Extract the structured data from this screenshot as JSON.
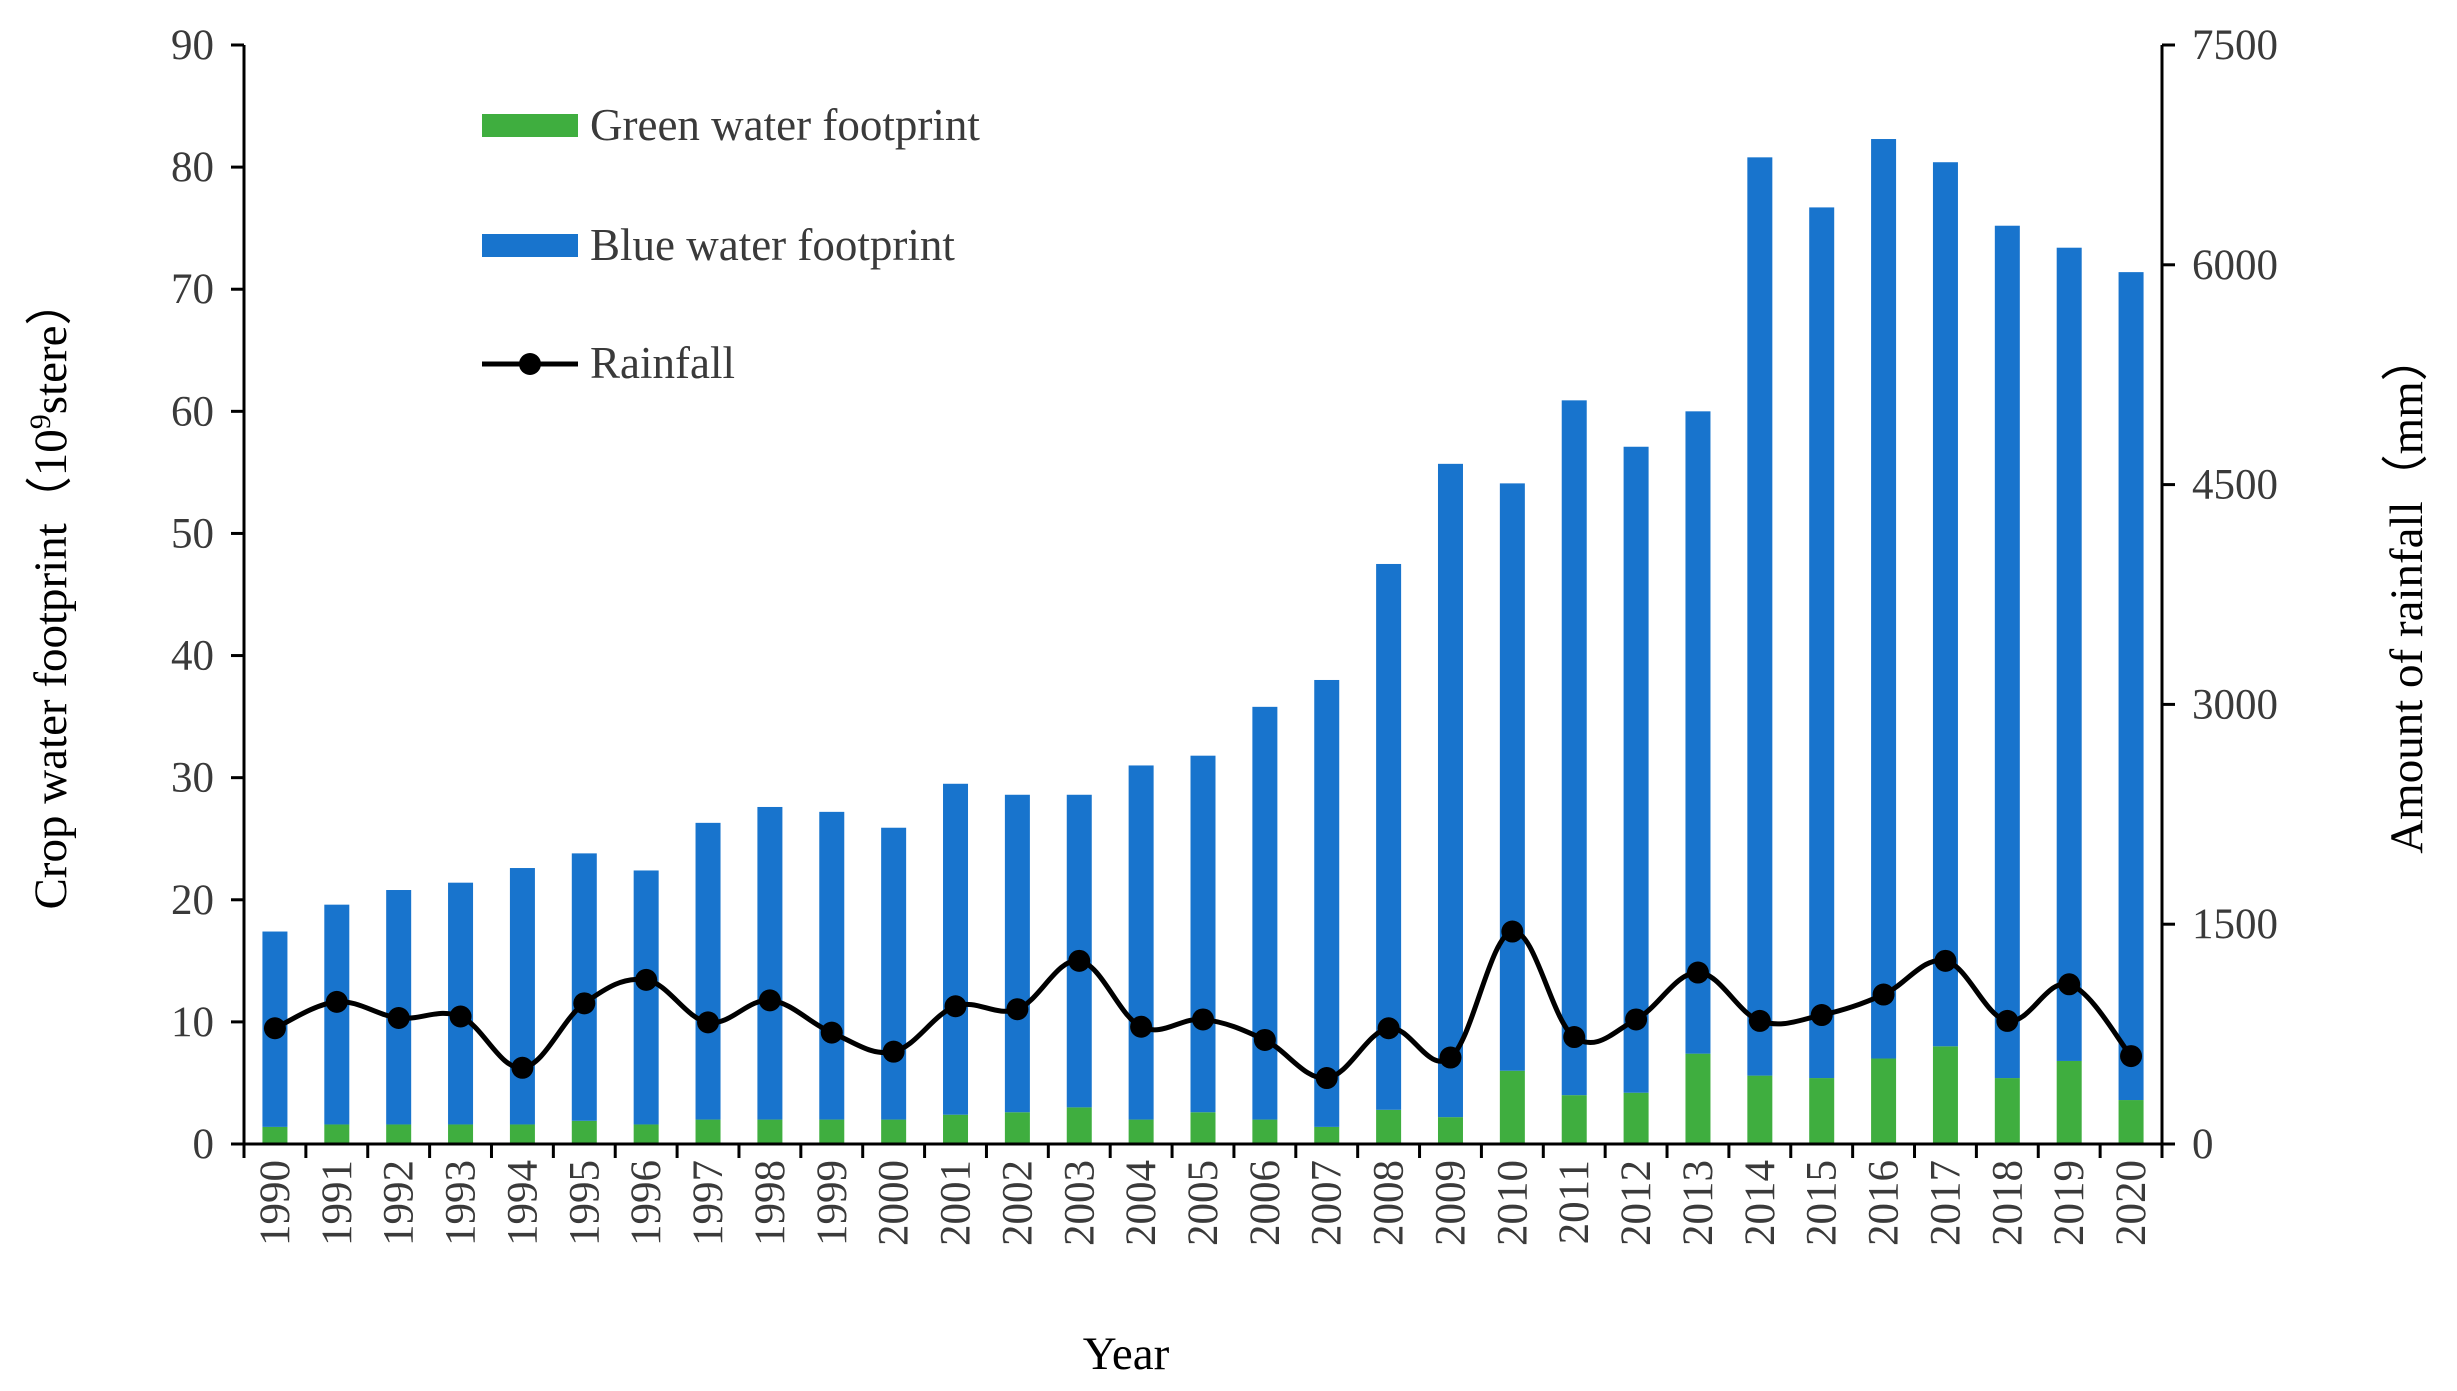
{
  "chart_data": {
    "type": "bar",
    "stacked": true,
    "categories": [
      "1990",
      "1991",
      "1992",
      "1993",
      "1994",
      "1995",
      "1996",
      "1997",
      "1998",
      "1999",
      "2000",
      "2001",
      "2002",
      "2003",
      "2004",
      "2005",
      "2006",
      "2007",
      "2008",
      "2009",
      "2010",
      "2011",
      "2012",
      "2013",
      "2014",
      "2015",
      "2016",
      "2017",
      "2018",
      "2019",
      "2020"
    ],
    "series": [
      {
        "name": "Green water footprint",
        "type": "bar",
        "axis": "left",
        "color": "#3fae3f",
        "values": [
          1.4,
          1.6,
          1.6,
          1.6,
          1.6,
          1.9,
          1.6,
          2.0,
          2.0,
          2.0,
          2.0,
          2.4,
          2.6,
          3.0,
          2.0,
          2.6,
          2.0,
          1.4,
          2.8,
          2.2,
          6.0,
          4.0,
          4.2,
          7.4,
          5.6,
          5.4,
          7.0,
          8.0,
          5.4,
          6.8,
          3.6
        ]
      },
      {
        "name": "Blue water footprint",
        "type": "bar",
        "axis": "left",
        "color": "#1874cd",
        "values": [
          16.0,
          18.0,
          19.2,
          19.8,
          21.0,
          21.9,
          20.8,
          24.3,
          25.6,
          25.2,
          23.9,
          27.1,
          26.0,
          25.6,
          29.0,
          29.2,
          33.8,
          36.6,
          44.7,
          53.5,
          48.1,
          56.9,
          52.9,
          52.6,
          75.2,
          71.3,
          75.3,
          72.4,
          69.8,
          66.6,
          67.8
        ]
      },
      {
        "name": "Rainfall",
        "type": "line",
        "axis": "right",
        "color": "#000000",
        "values": [
          790,
          970,
          860,
          870,
          520,
          960,
          1120,
          830,
          980,
          760,
          630,
          940,
          920,
          1250,
          800,
          850,
          710,
          450,
          790,
          590,
          1450,
          730,
          850,
          1170,
          840,
          880,
          1020,
          1250,
          840,
          1090,
          600
        ]
      }
    ],
    "xlabel": "Year",
    "ylabel": "Crop water footprint（10⁹stere）",
    "y2label": "Amount of rainfall（mm）",
    "ylim": [
      0,
      90
    ],
    "yticks": [
      "0",
      "10",
      "20",
      "30",
      "40",
      "50",
      "60",
      "70",
      "80",
      "90"
    ],
    "y2lim": [
      0,
      7500
    ],
    "y2ticks": [
      "0",
      "1500",
      "3000",
      "4500",
      "6000",
      "7500"
    ],
    "grid": false,
    "legend_position": "top-left"
  }
}
